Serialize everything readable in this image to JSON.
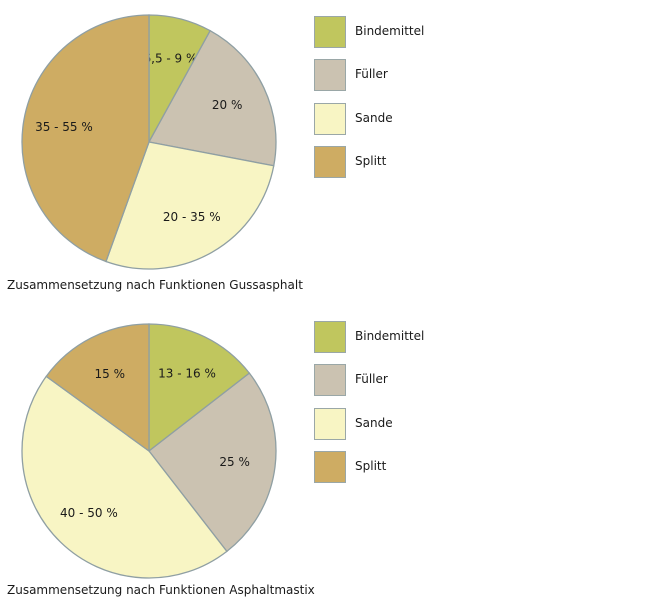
{
  "chart_data": [
    {
      "type": "pie",
      "caption_main": "Zusammensetzung nach Funktionen",
      "caption_name": "Gussasphalt",
      "slices": [
        {
          "name": "Bindemittel",
          "label": "6,5 - 9 %",
          "value": 8,
          "color": "#c0c65e"
        },
        {
          "name": "Füller",
          "label": "20 %",
          "value": 20,
          "color": "#cbc2b1"
        },
        {
          "name": "Sande",
          "label": "20 - 35 %",
          "value": 27.5,
          "color": "#f8f5c4"
        },
        {
          "name": "Splitt",
          "label": "35 - 55 %",
          "value": 44.5,
          "color": "#ceac63"
        }
      ],
      "legend": [
        "Bindemittel",
        "Füller",
        "Sande",
        "Splitt"
      ],
      "legend_placement": "right"
    },
    {
      "type": "pie",
      "caption_main": "Zusammensetzung nach Funktionen",
      "caption_name": "Asphaltmastix",
      "slices": [
        {
          "name": "Bindemittel",
          "label": "13 - 16 %",
          "value": 14.5,
          "color": "#c0c65e"
        },
        {
          "name": "Füller",
          "label": "25 %",
          "value": 25,
          "color": "#cbc2b1"
        },
        {
          "name": "Sande",
          "label": "40 - 50 %",
          "value": 45.5,
          "color": "#f8f5c4"
        },
        {
          "name": "Splitt",
          "label": "15 %",
          "value": 15,
          "color": "#ceac63"
        }
      ],
      "legend": [
        "Bindemittel",
        "Füller",
        "Sande",
        "Splitt"
      ],
      "legend_placement": "right"
    }
  ]
}
